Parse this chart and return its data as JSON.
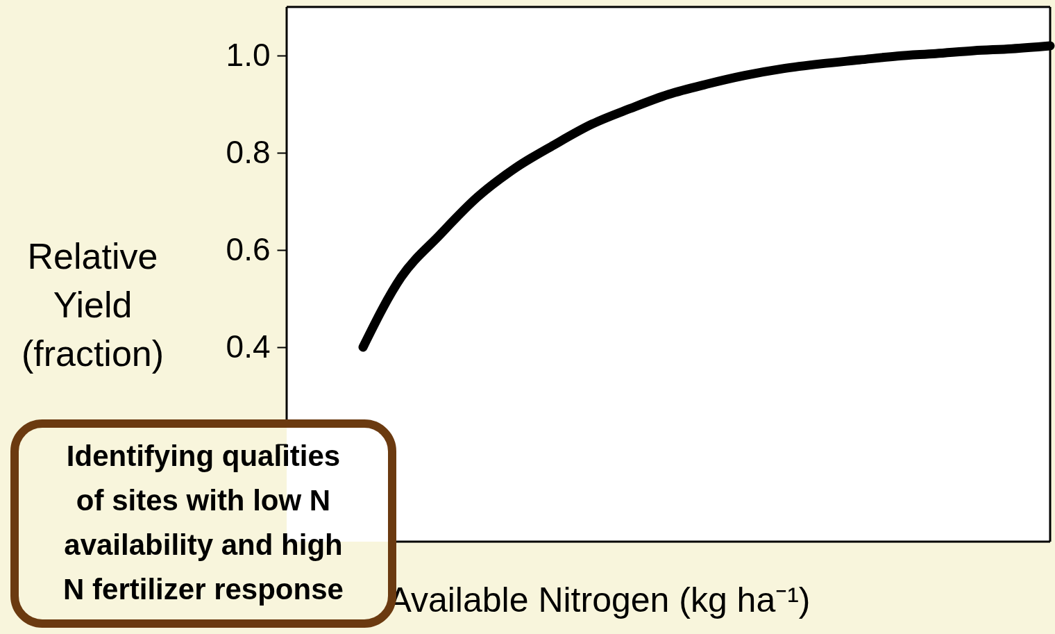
{
  "chart_data": {
    "type": "line",
    "ylabel": "Relative\nYield\n(fraction)",
    "xlabel": "Available Nitrogen (kg ha⁻¹)",
    "categories": [
      null,
      null,
      null,
      null,
      null,
      null,
      null,
      null,
      null,
      null,
      null,
      null,
      null,
      null,
      null,
      null,
      null,
      null,
      null,
      null,
      null
    ],
    "series": [
      {
        "color": "#000000",
        "values": [
          null,
          null,
          0.4,
          0.544,
          0.63,
          0.709,
          0.769,
          0.816,
          0.859,
          0.891,
          0.92,
          0.941,
          0.959,
          0.973,
          0.983,
          0.991,
          0.999,
          1.004,
          1.01,
          1.014,
          1.02
        ]
      }
    ],
    "ylim": [
      0,
      1.1
    ],
    "yticks": [
      {
        "value": 0.2,
        "label": null
      },
      0.4,
      0.6,
      0.8,
      {
        "value": 1.0,
        "label": "1.0"
      }
    ],
    "tick_labels": "y",
    "grid": false,
    "marker": "none",
    "line_style": "solid",
    "annotations": [
      "Identifying qualities of sites with low N availability and high N fertilizer response"
    ]
  }
}
